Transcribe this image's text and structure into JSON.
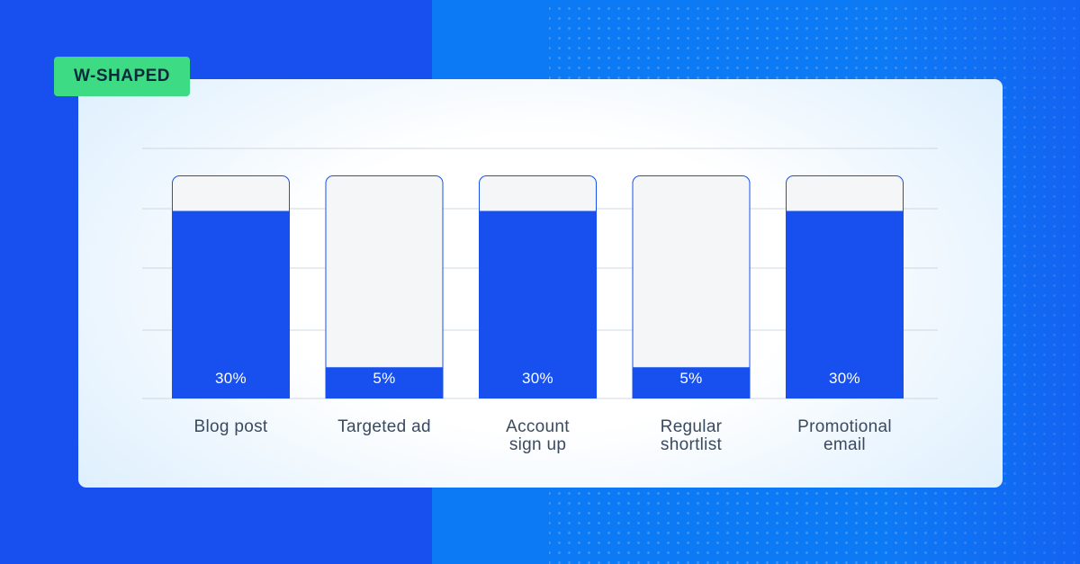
{
  "badge": {
    "label": "W-SHAPED"
  },
  "colors": {
    "bar_fill": "#1750ef",
    "bar_empty": "#f4f6f8",
    "grid": "#cfd8e0",
    "badge": "#3ddc84"
  },
  "chart_data": {
    "type": "bar",
    "title": "W-SHAPED",
    "categories": [
      [
        "Blog post"
      ],
      [
        "Targeted ad"
      ],
      [
        "Account",
        "sign up"
      ],
      [
        "Regular",
        "shortlist"
      ],
      [
        "Promotional",
        "email"
      ]
    ],
    "series": [
      {
        "values": [
          30,
          5,
          30,
          5,
          30
        ],
        "labels": [
          "30%",
          "5%",
          "30%",
          "5%",
          "30%"
        ]
      }
    ],
    "ylim": [
      0,
      40
    ],
    "grid": true,
    "xlabel": "",
    "ylabel": ""
  }
}
